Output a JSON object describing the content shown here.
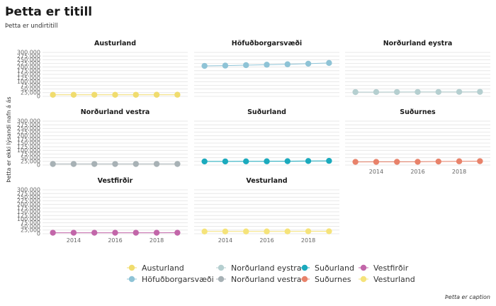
{
  "chart_data": {
    "type": "line",
    "title": "Þetta er titill",
    "subtitle": "Þetta er undirtitill",
    "ylabel": "Þetta er ekki lýsandi nafn á ás",
    "caption": "Þetta er caption",
    "x": [
      2013,
      2014,
      2015,
      2016,
      2017,
      2018,
      2019
    ],
    "x_ticks": [
      2014,
      2016,
      2018
    ],
    "x_tick_labels": [
      "2014",
      "2016",
      "2018"
    ],
    "ylim": [
      0,
      300000
    ],
    "y_ticks": [
      0,
      25000,
      50000,
      75000,
      100000,
      125000,
      150000,
      175000,
      200000,
      225000,
      250000,
      275000,
      300000
    ],
    "y_tick_labels": [
      "0",
      "25,000",
      "50,000",
      "75,000",
      "100,000",
      "125,000",
      "150,000",
      "175,000",
      "200,000",
      "225,000",
      "250,000",
      "275,000",
      "300,000"
    ],
    "grid": true,
    "legend_position": "bottom",
    "series": [
      {
        "name": "Austurland",
        "color": "#f0dc6e",
        "values": [
          10500,
          10600,
          10650,
          10700,
          10800,
          10900,
          11000
        ]
      },
      {
        "name": "Höfuðborgarsvæði",
        "color": "#8ec3d6",
        "values": [
          208000,
          210000,
          213000,
          216000,
          219000,
          223000,
          228000
        ]
      },
      {
        "name": "Norðurland eystra",
        "color": "#b5cfd0",
        "values": [
          29000,
          29200,
          29500,
          29800,
          30000,
          30400,
          30800
        ]
      },
      {
        "name": "Norðurland vestra",
        "color": "#a7b1b5",
        "values": [
          7200,
          7200,
          7150,
          7150,
          7200,
          7250,
          7300
        ]
      },
      {
        "name": "Suðurland",
        "color": "#1aaabd",
        "values": [
          24500,
          24700,
          25000,
          25500,
          26300,
          27500,
          28500
        ]
      },
      {
        "name": "Suðurnes",
        "color": "#e8826a",
        "values": [
          21500,
          21600,
          21800,
          22200,
          24000,
          25500,
          26500
        ]
      },
      {
        "name": "Vestfirðir",
        "color": "#c266a9",
        "values": [
          7000,
          6950,
          6900,
          6950,
          6950,
          7000,
          7050
        ]
      },
      {
        "name": "Vesturland",
        "color": "#f5e37a",
        "values": [
          15500,
          15600,
          15700,
          15800,
          16000,
          16500,
          16700
        ]
      }
    ]
  }
}
